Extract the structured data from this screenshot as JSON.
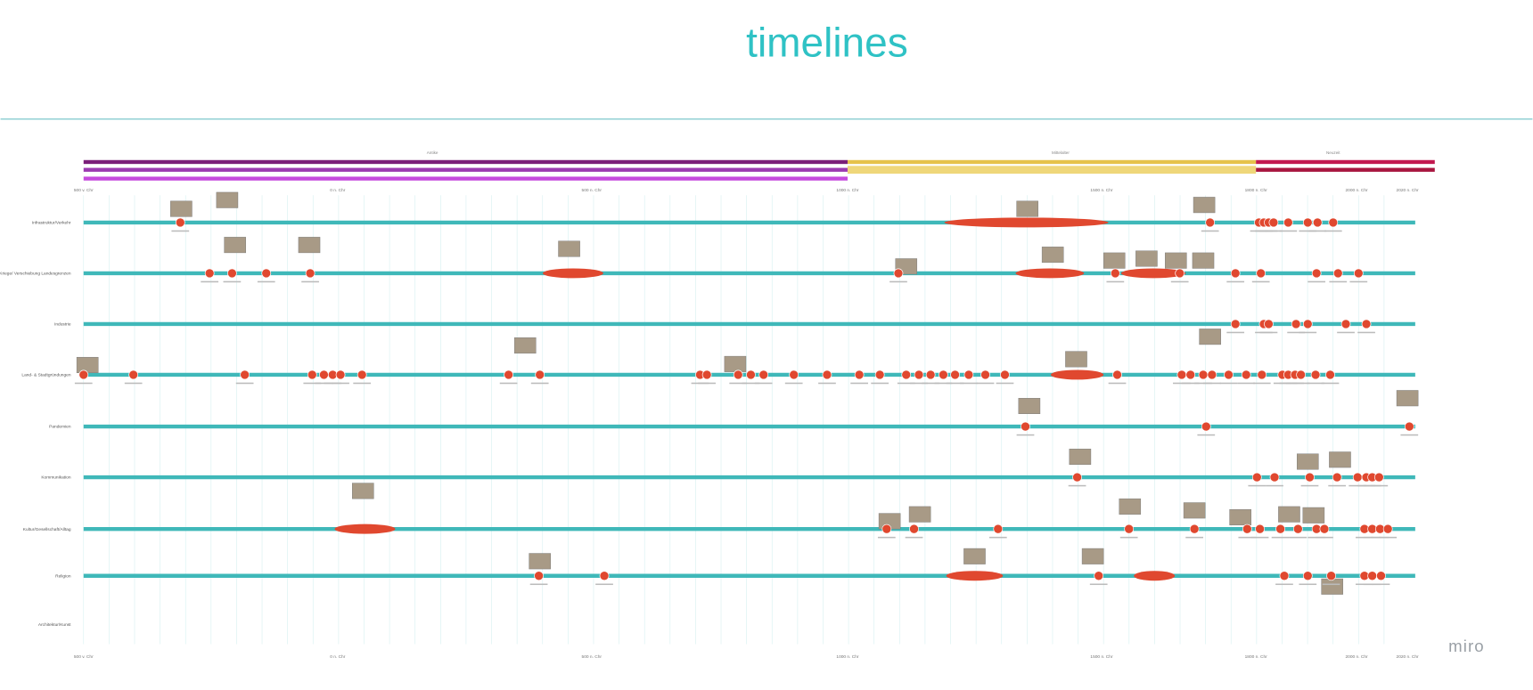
{
  "header": {
    "title": "timelines"
  },
  "eras": [
    "Antike",
    "Mittelalter",
    "Neuzeit"
  ],
  "rows": [
    "Infrastruktur/Verkehr",
    "Kriege/ Verschiebung Landesgrenzen",
    "Industrie",
    "Land- & Stadtgründungen",
    "Pandemien",
    "Kommunikation",
    "Kultur/Gesellschaft/Alltag",
    "Religion",
    "Architektur/Kunst"
  ],
  "axis": {
    "labels": [
      "500 v. Chr",
      "0 n. Chr",
      "500 n. Chr",
      "1000 n. Chr",
      "1500 n. Chr",
      "1800 n. Chr",
      "2000 n. Chr",
      "2020 n. Chr"
    ]
  },
  "logo": "miro"
}
